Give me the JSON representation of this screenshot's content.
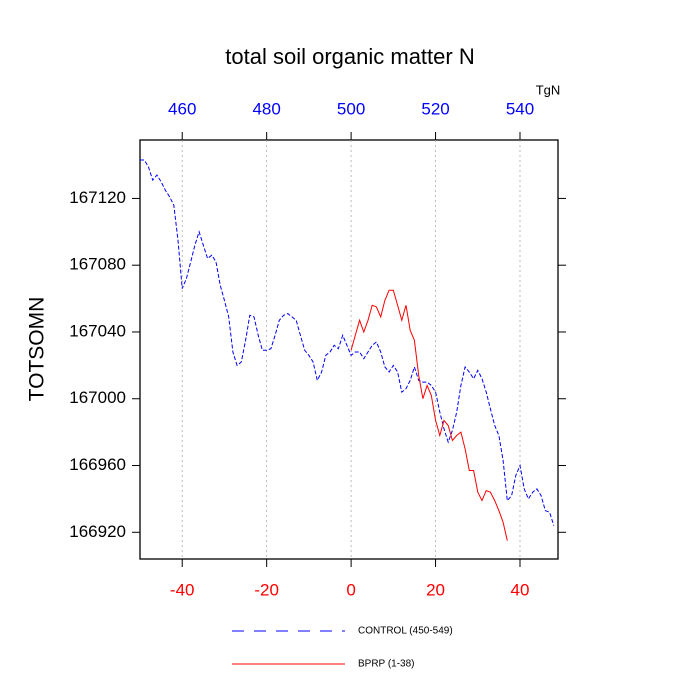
{
  "chart_data": {
    "type": "line",
    "title": "total soil organic matter N",
    "y_label": "TOTSOMN",
    "x2_label": "TgN",
    "xlim": [
      -50,
      49
    ],
    "xticks": [
      -40,
      -20,
      0,
      20,
      40
    ],
    "xtick_color": "#ff0000",
    "x2lim": [
      450,
      549
    ],
    "x2ticks": [
      460,
      480,
      500,
      520,
      540
    ],
    "x2tick_color": "#0000ff",
    "ylim": [
      166904,
      167155
    ],
    "yticks": [
      166920,
      166960,
      167000,
      167040,
      167080,
      167120
    ],
    "grid": "x",
    "series": [
      {
        "name": "CONTROL (450-549)",
        "color": "#0000ff",
        "style": "dashed",
        "x": [
          -50,
          -49,
          -48,
          -47,
          -46,
          -45,
          -44,
          -43,
          -42,
          -41,
          -40,
          -39,
          -38,
          -37,
          -36,
          -35,
          -34,
          -33,
          -32,
          -31,
          -30,
          -29,
          -28,
          -27,
          -26,
          -25,
          -24,
          -23,
          -22,
          -21,
          -20,
          -19,
          -18,
          -17,
          -16,
          -15,
          -14,
          -13,
          -12,
          -11,
          -10,
          -9,
          -8,
          -7,
          -6,
          -5,
          -4,
          -3,
          -2,
          -1,
          0,
          1,
          2,
          3,
          4,
          5,
          6,
          7,
          8,
          9,
          10,
          11,
          12,
          13,
          14,
          15,
          16,
          17,
          18,
          19,
          20,
          21,
          22,
          23,
          24,
          25,
          26,
          27,
          28,
          29,
          30,
          31,
          32,
          33,
          34,
          35,
          36,
          37,
          38,
          39,
          40,
          41,
          42,
          43,
          44,
          45,
          46,
          47,
          48
        ],
        "values": [
          167143,
          167143,
          167139,
          167131,
          167134,
          167130,
          167125,
          167121,
          167116,
          167095,
          167066,
          167072,
          167082,
          167092,
          167100,
          167092,
          167084,
          167086,
          167082,
          167068,
          167059,
          167049,
          167028,
          167020,
          167022,
          167035,
          167050,
          167049,
          167038,
          167029,
          167029,
          167030,
          167038,
          167047,
          167050,
          167051,
          167049,
          167047,
          167038,
          167029,
          167026,
          167022,
          167011,
          167016,
          167026,
          167028,
          167032,
          167030,
          167038,
          167032,
          167026,
          167028,
          167028,
          167024,
          167028,
          167032,
          167034,
          167028,
          167019,
          167016,
          167020,
          167016,
          167004,
          167006,
          167011,
          167019,
          167011,
          167010,
          167010,
          167008,
          167004,
          166992,
          166982,
          166974,
          166981,
          166992,
          167008,
          167019,
          167016,
          167012,
          167017,
          167012,
          167004,
          166994,
          166984,
          166978,
          166963,
          166939,
          166942,
          166954,
          166960,
          166946,
          166940,
          166944,
          166946,
          166942,
          166933,
          166932,
          166924
        ]
      },
      {
        "name": "BPRP (1-38)",
        "color": "#ff0000",
        "style": "solid",
        "x": [
          0,
          1,
          2,
          3,
          4,
          5,
          6,
          7,
          8,
          9,
          10,
          11,
          12,
          13,
          14,
          15,
          16,
          17,
          18,
          19,
          20,
          21,
          22,
          23,
          24,
          25,
          26,
          27,
          28,
          29,
          30,
          31,
          32,
          33,
          34,
          35,
          36,
          37
        ],
        "values": [
          167029,
          167038,
          167047,
          167040,
          167047,
          167056,
          167055,
          167049,
          167059,
          167065,
          167065,
          167056,
          167047,
          167056,
          167041,
          167035,
          167014,
          167000,
          167008,
          167002,
          166987,
          166978,
          166987,
          166984,
          166975,
          166978,
          166980,
          166970,
          166957,
          166957,
          166944,
          166939,
          166945,
          166944,
          166939,
          166933,
          166926,
          166915
        ]
      }
    ]
  }
}
